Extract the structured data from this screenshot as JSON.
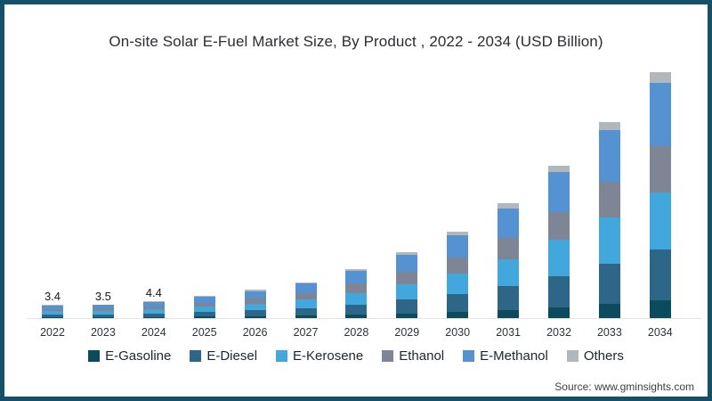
{
  "page": {
    "title": "On-site Solar E-Fuel Market Size, By Product , 2022 - 2034 (USD Billion)",
    "source": "Source: www.gminsights.com"
  },
  "colors": {
    "frame_border": "#144f6b",
    "axis_line": "#e3e3e3",
    "title_text": "#2b2d33"
  },
  "chart_data": {
    "type": "bar",
    "stacked": true,
    "title": "On-site Solar E-Fuel Market Size, By Product , 2022 - 2034 (USD Billion)",
    "xlabel": "",
    "ylabel": "USD Billion",
    "ylim": [
      0,
      70
    ],
    "grid": false,
    "legend_position": "bottom",
    "categories": [
      "2022",
      "2023",
      "2024",
      "2025",
      "2026",
      "2027",
      "2028",
      "2029",
      "2030",
      "2031",
      "2032",
      "2033",
      "2034"
    ],
    "series": [
      {
        "name": "E-Gasoline",
        "color": "#0c4a5e",
        "values": [
          0.24,
          0.25,
          0.32,
          0.41,
          0.52,
          0.66,
          0.91,
          1.22,
          1.59,
          2.11,
          2.8,
          3.6,
          4.52
        ]
      },
      {
        "name": "E-Diesel",
        "color": "#2e6687",
        "values": [
          0.7,
          0.72,
          0.9,
          1.17,
          1.48,
          1.89,
          2.58,
          3.46,
          4.53,
          6.01,
          7.97,
          10.25,
          12.87
        ]
      },
      {
        "name": "E-Kerosene",
        "color": "#41a7dc",
        "values": [
          0.8,
          0.82,
          1.03,
          1.34,
          1.69,
          2.16,
          2.96,
          3.97,
          5.19,
          6.89,
          9.14,
          11.75,
          14.76
        ]
      },
      {
        "name": "Ethanol",
        "color": "#7e8695",
        "values": [
          0.63,
          0.65,
          0.81,
          1.05,
          1.33,
          1.7,
          2.33,
          3.13,
          4.09,
          5.42,
          7.2,
          9.25,
          11.62
        ]
      },
      {
        "name": "E-Methanol",
        "color": "#5592d2",
        "values": [
          0.88,
          0.91,
          1.14,
          1.48,
          1.87,
          2.39,
          3.28,
          4.39,
          5.75,
          7.62,
          10.11,
          13.0,
          16.33
        ]
      },
      {
        "name": "Others",
        "color": "#b2b7bb",
        "values": [
          0.15,
          0.15,
          0.2,
          0.25,
          0.31,
          0.4,
          0.54,
          0.73,
          0.95,
          1.25,
          1.68,
          2.15,
          2.7
        ]
      }
    ],
    "totals": [
      3.4,
      3.5,
      4.4,
      5.7,
      7.2,
      9.2,
      12.6,
      16.9,
      22.1,
      29.3,
      38.9,
      50.0,
      62.8
    ],
    "value_labels": [
      "3.4",
      "3.5",
      "4.4"
    ]
  }
}
